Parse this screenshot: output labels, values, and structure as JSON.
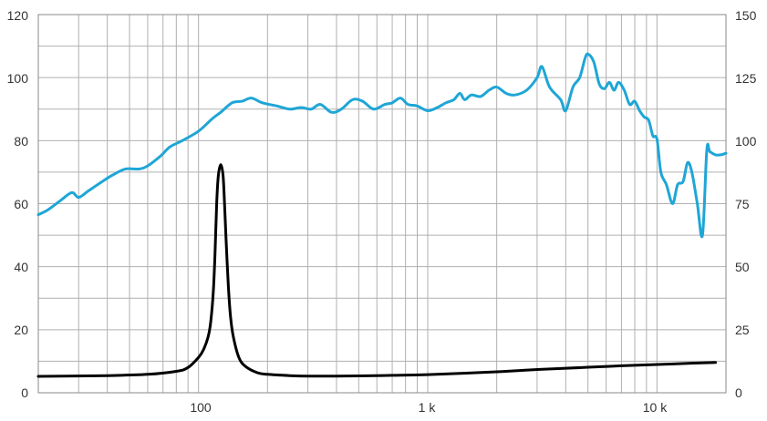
{
  "chart_data": {
    "type": "line",
    "title": "",
    "xlabel": "",
    "ylabel": "",
    "y2label": "",
    "x_scale": "log",
    "xlim": [
      20,
      20000
    ],
    "ylim": [
      0,
      120
    ],
    "y2lim": [
      0,
      150
    ],
    "grid": true,
    "legend": "none",
    "x_tick_labels": [
      {
        "value": 100,
        "label": "100"
      },
      {
        "value": 1000,
        "label": "1 k"
      },
      {
        "value": 10000,
        "label": "10 k"
      }
    ],
    "y_tick_labels": [
      "0",
      "20",
      "40",
      "60",
      "80",
      "100",
      "120"
    ],
    "y2_tick_labels": [
      "0",
      "25",
      "50",
      "75",
      "100",
      "125",
      "150"
    ],
    "series": [
      {
        "axis": "left",
        "color": "#1ea6d6",
        "x": [
          20,
          22,
          25,
          28,
          30,
          33,
          38,
          42,
          48,
          55,
          60,
          68,
          75,
          85,
          100,
          115,
          125,
          140,
          155,
          170,
          190,
          220,
          250,
          280,
          310,
          340,
          380,
          420,
          470,
          520,
          580,
          650,
          700,
          760,
          820,
          900,
          1000,
          1100,
          1200,
          1300,
          1380,
          1450,
          1550,
          1700,
          1850,
          2000,
          2200,
          2400,
          2700,
          3000,
          3150,
          3400,
          3800,
          4000,
          4300,
          4600,
          4850,
          5000,
          5300,
          5600,
          5900,
          6200,
          6500,
          6800,
          7200,
          7600,
          8000,
          8400,
          8800,
          9200,
          9600,
          10000,
          10400,
          11000,
          11700,
          12300,
          13000,
          13600,
          14200,
          15000,
          15800,
          16500,
          17000,
          18000,
          19000,
          20000
        ],
        "y": [
          56.5,
          58,
          61,
          63.5,
          62,
          64,
          67,
          69,
          71,
          71,
          72,
          75,
          78,
          80,
          83,
          87,
          89,
          92,
          92.5,
          93.5,
          92,
          91,
          90,
          90.5,
          90,
          91.5,
          89,
          90,
          93,
          92.5,
          90,
          91.5,
          92,
          93.5,
          91.5,
          91,
          89.5,
          90.5,
          92,
          93,
          95,
          93,
          94.5,
          94,
          96,
          97,
          95,
          94.5,
          96,
          100,
          103.5,
          97,
          93,
          89.5,
          97,
          100,
          106,
          107.5,
          105,
          98,
          96.5,
          98.5,
          96,
          98.5,
          96,
          91.5,
          92.5,
          89.5,
          87.5,
          86.5,
          81.5,
          80.5,
          70,
          66,
          60,
          66,
          67,
          73,
          70,
          60,
          50,
          77,
          76.5,
          75.5,
          75.5,
          76
        ]
      },
      {
        "axis": "right",
        "color": "#000000",
        "x": [
          20,
          40,
          60,
          80,
          90,
          100,
          105,
          110,
          113,
          116,
          118,
          120,
          122,
          125,
          128,
          130,
          132,
          135,
          138,
          142,
          150,
          160,
          180,
          200,
          250,
          300,
          400,
          500,
          700,
          1000,
          2000,
          3000,
          5000,
          7000,
          10000,
          15000,
          18000
        ],
        "y": [
          6.5,
          6.8,
          7.3,
          8.5,
          10,
          14,
          17,
          22,
          28,
          40,
          55,
          75,
          86,
          90.5,
          86,
          74,
          60,
          42,
          30,
          22,
          14,
          10.5,
          8,
          7.3,
          6.8,
          6.6,
          6.6,
          6.7,
          6.9,
          7.2,
          8.3,
          9.2,
          10.1,
          10.7,
          11.2,
          11.8,
          12
        ]
      }
    ]
  }
}
